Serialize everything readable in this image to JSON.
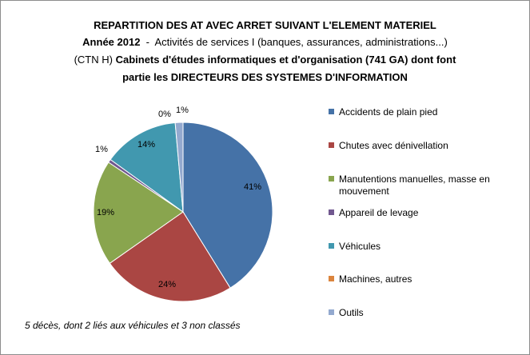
{
  "chart_data": {
    "type": "pie",
    "title": {
      "line1": "REPARTITION DES AT AVEC ARRET SUIVANT L'ELEMENT MATERIEL",
      "line2_bold": "Année 2012",
      "line2_rest": "  -  Activités de services I (banques, assurances, administrations...)",
      "line3_normal": "(CTN H) ",
      "line3_bold": "Cabinets d'études informatiques et d'organisation (741 GA) dont font",
      "line4": "partie les DIRECTEURS DES SYSTEMES D'INFORMATION"
    },
    "slices": [
      {
        "name": "Accidents de plain pied",
        "value": 41,
        "label": "41%",
        "color": "#4572a7"
      },
      {
        "name": "Chutes avec dénivellation",
        "value": 24,
        "label": "24%",
        "color": "#aa4643"
      },
      {
        "name": "Manutentions manuelles, masse en mouvement",
        "value": 19,
        "label": "19%",
        "color": "#89a54e"
      },
      {
        "name": "Appareil de levage",
        "value": 0.6,
        "label": "1%",
        "color": "#71588f"
      },
      {
        "name": "Véhicules",
        "value": 13.6,
        "label": "14%",
        "color": "#4198af"
      },
      {
        "name": "Machines, autres",
        "value": 0,
        "label": "0%",
        "color": "#db843d"
      },
      {
        "name": "Outils",
        "value": 1.4,
        "label": "1%",
        "color": "#93a9cf"
      }
    ],
    "legend": {
      "placement": "right",
      "items": [
        "Accidents de plain pied",
        "Chutes avec dénivellation",
        "Manutentions manuelles, masse en",
        "Appareil de levage",
        "Véhicules",
        "Machines, autres",
        "Outils"
      ],
      "manutention_line2": "mouvement"
    },
    "note": "5 décès, dont 2 liés aux véhicules et 3 non classés"
  }
}
